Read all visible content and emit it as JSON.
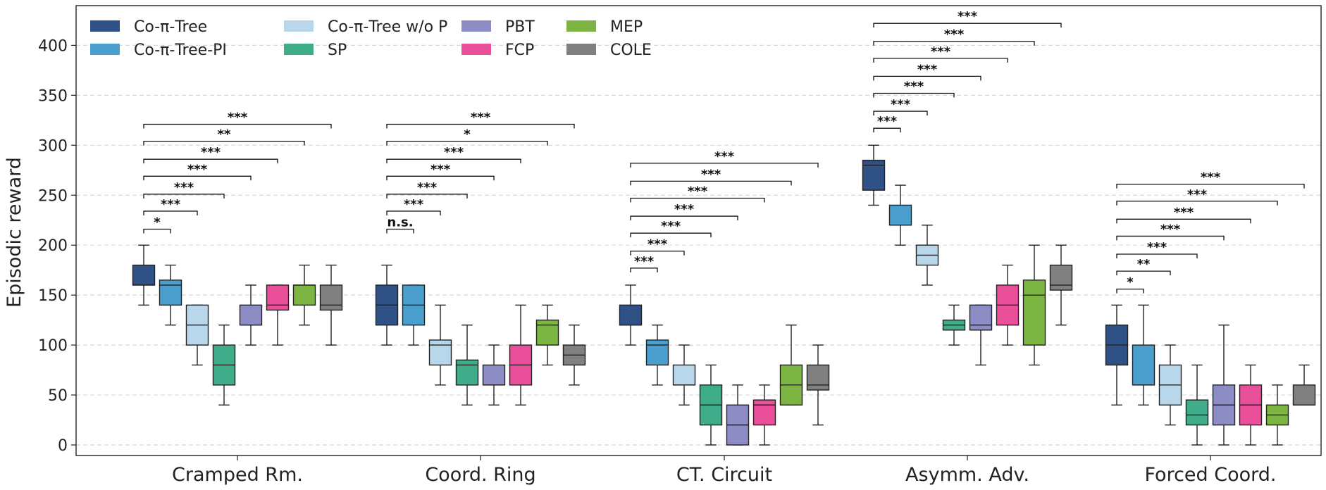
{
  "chart_data": {
    "type": "boxplot",
    "title": "",
    "xlabel": "",
    "ylabel": "Episodic reward",
    "ylim": [
      -10,
      440
    ],
    "yticks": [
      0,
      50,
      100,
      150,
      200,
      250,
      300,
      350,
      400
    ],
    "grid": "y-dashed",
    "legend_placement": "top-left",
    "categories": [
      "Cramped Rm.",
      "Coord. Ring",
      "CT. Circuit",
      "Asymm. Adv.",
      "Forced Coord."
    ],
    "series": [
      {
        "name": "Co-π-Tree",
        "color": "#2f5185",
        "boxes": [
          {
            "min": 140,
            "q1": 160,
            "median": 160,
            "q3": 180,
            "max": 200
          },
          {
            "min": 100,
            "q1": 120,
            "median": 140,
            "q3": 160,
            "max": 180
          },
          {
            "min": 100,
            "q1": 120,
            "median": 120,
            "q3": 140,
            "max": 160
          },
          {
            "min": 240,
            "q1": 255,
            "median": 280,
            "q3": 285,
            "max": 300
          },
          {
            "min": 40,
            "q1": 80,
            "median": 100,
            "q3": 120,
            "max": 140
          }
        ]
      },
      {
        "name": "Co-π-Tree-PI",
        "color": "#4b9fcf",
        "boxes": [
          {
            "min": 120,
            "q1": 140,
            "median": 160,
            "q3": 165,
            "max": 180
          },
          {
            "min": 100,
            "q1": 120,
            "median": 140,
            "q3": 160,
            "max": 160
          },
          {
            "min": 60,
            "q1": 80,
            "median": 100,
            "q3": 105,
            "max": 120
          },
          {
            "min": 200,
            "q1": 220,
            "median": 220,
            "q3": 240,
            "max": 260
          },
          {
            "min": 40,
            "q1": 60,
            "median": 60,
            "q3": 100,
            "max": 140
          }
        ]
      },
      {
        "name": "Co-π-Tree w/o P",
        "color": "#b9d7ea",
        "boxes": [
          {
            "min": 80,
            "q1": 100,
            "median": 120,
            "q3": 140,
            "max": 140
          },
          {
            "min": 60,
            "q1": 80,
            "median": 100,
            "q3": 105,
            "max": 140
          },
          {
            "min": 40,
            "q1": 60,
            "median": 60,
            "q3": 80,
            "max": 100
          },
          {
            "min": 160,
            "q1": 180,
            "median": 190,
            "q3": 200,
            "max": 220
          },
          {
            "min": 20,
            "q1": 40,
            "median": 60,
            "q3": 80,
            "max": 100
          }
        ]
      },
      {
        "name": "SP",
        "color": "#3fad8a",
        "boxes": [
          {
            "min": 40,
            "q1": 60,
            "median": 80,
            "q3": 100,
            "max": 120
          },
          {
            "min": 40,
            "q1": 60,
            "median": 80,
            "q3": 85,
            "max": 120
          },
          {
            "min": 0,
            "q1": 20,
            "median": 40,
            "q3": 60,
            "max": 80
          },
          {
            "min": 100,
            "q1": 115,
            "median": 120,
            "q3": 125,
            "max": 140
          },
          {
            "min": 0,
            "q1": 20,
            "median": 30,
            "q3": 45,
            "max": 80
          }
        ]
      },
      {
        "name": "PBT",
        "color": "#8e8cc4",
        "boxes": [
          {
            "min": 100,
            "q1": 120,
            "median": 120,
            "q3": 140,
            "max": 160
          },
          {
            "min": 40,
            "q1": 60,
            "median": 60,
            "q3": 80,
            "max": 100
          },
          {
            "min": 0,
            "q1": 0,
            "median": 20,
            "q3": 40,
            "max": 60
          },
          {
            "min": 80,
            "q1": 115,
            "median": 120,
            "q3": 140,
            "max": 140
          },
          {
            "min": 0,
            "q1": 20,
            "median": 40,
            "q3": 60,
            "max": 120
          }
        ]
      },
      {
        "name": "FCP",
        "color": "#ea4f9a",
        "boxes": [
          {
            "min": 100,
            "q1": 135,
            "median": 140,
            "q3": 160,
            "max": 160
          },
          {
            "min": 40,
            "q1": 60,
            "median": 80,
            "q3": 100,
            "max": 140
          },
          {
            "min": 0,
            "q1": 20,
            "median": 40,
            "q3": 45,
            "max": 60
          },
          {
            "min": 100,
            "q1": 120,
            "median": 140,
            "q3": 160,
            "max": 180
          },
          {
            "min": 0,
            "q1": 20,
            "median": 40,
            "q3": 60,
            "max": 80
          }
        ]
      },
      {
        "name": "MEP",
        "color": "#7db543",
        "boxes": [
          {
            "min": 120,
            "q1": 140,
            "median": 160,
            "q3": 160,
            "max": 180
          },
          {
            "min": 80,
            "q1": 100,
            "median": 120,
            "q3": 125,
            "max": 140
          },
          {
            "min": 40,
            "q1": 40,
            "median": 60,
            "q3": 80,
            "max": 120
          },
          {
            "min": 80,
            "q1": 100,
            "median": 150,
            "q3": 165,
            "max": 200
          },
          {
            "min": 0,
            "q1": 20,
            "median": 30,
            "q3": 40,
            "max": 60
          }
        ]
      },
      {
        "name": "COLE",
        "color": "#808080",
        "boxes": [
          {
            "min": 100,
            "q1": 135,
            "median": 140,
            "q3": 160,
            "max": 180
          },
          {
            "min": 60,
            "q1": 80,
            "median": 90,
            "q3": 100,
            "max": 120
          },
          {
            "min": 20,
            "q1": 55,
            "median": 60,
            "q3": 80,
            "max": 100
          },
          {
            "min": 120,
            "q1": 155,
            "median": 160,
            "q3": 180,
            "max": 200
          },
          {
            "min": 40,
            "q1": 40,
            "median": 40,
            "q3": 60,
            "max": 80
          }
        ]
      }
    ],
    "significance": [
      {
        "category": "Cramped Rm.",
        "brackets": [
          {
            "vs": "Co-π-Tree-PI",
            "label": "*",
            "y": 216
          },
          {
            "vs": "Co-π-Tree w/o P",
            "label": "***",
            "y": 234
          },
          {
            "vs": "SP",
            "label": "***",
            "y": 251
          },
          {
            "vs": "PBT",
            "label": "***",
            "y": 269
          },
          {
            "vs": "FCP",
            "label": "***",
            "y": 286
          },
          {
            "vs": "MEP",
            "label": "**",
            "y": 304
          },
          {
            "vs": "COLE",
            "label": "***",
            "y": 321
          }
        ]
      },
      {
        "category": "Coord. Ring",
        "brackets": [
          {
            "vs": "Co-π-Tree-PI",
            "label": "n.s.",
            "y": 216
          },
          {
            "vs": "Co-π-Tree w/o P",
            "label": "***",
            "y": 234
          },
          {
            "vs": "SP",
            "label": "***",
            "y": 251
          },
          {
            "vs": "PBT",
            "label": "***",
            "y": 269
          },
          {
            "vs": "FCP",
            "label": "***",
            "y": 286
          },
          {
            "vs": "MEP",
            "label": "*",
            "y": 304
          },
          {
            "vs": "COLE",
            "label": "***",
            "y": 321
          }
        ]
      },
      {
        "category": "CT. Circuit",
        "brackets": [
          {
            "vs": "Co-π-Tree-PI",
            "label": "***",
            "y": 177
          },
          {
            "vs": "Co-π-Tree w/o P",
            "label": "***",
            "y": 194
          },
          {
            "vs": "SP",
            "label": "***",
            "y": 212
          },
          {
            "vs": "PBT",
            "label": "***",
            "y": 229
          },
          {
            "vs": "FCP",
            "label": "***",
            "y": 247
          },
          {
            "vs": "MEP",
            "label": "***",
            "y": 264
          },
          {
            "vs": "COLE",
            "label": "***",
            "y": 282
          }
        ]
      },
      {
        "category": "Asymm. Adv.",
        "brackets": [
          {
            "vs": "Co-π-Tree-PI",
            "label": "***",
            "y": 317
          },
          {
            "vs": "Co-π-Tree w/o P",
            "label": "***",
            "y": 334
          },
          {
            "vs": "SP",
            "label": "***",
            "y": 352
          },
          {
            "vs": "PBT",
            "label": "***",
            "y": 369
          },
          {
            "vs": "FCP",
            "label": "***",
            "y": 387
          },
          {
            "vs": "MEP",
            "label": "***",
            "y": 404
          },
          {
            "vs": "COLE",
            "label": "***",
            "y": 422
          }
        ]
      },
      {
        "category": "Forced Coord.",
        "brackets": [
          {
            "vs": "Co-π-Tree-PI",
            "label": "*",
            "y": 156
          },
          {
            "vs": "Co-π-Tree w/o P",
            "label": "**",
            "y": 174
          },
          {
            "vs": "SP",
            "label": "***",
            "y": 191
          },
          {
            "vs": "PBT",
            "label": "***",
            "y": 209
          },
          {
            "vs": "FCP",
            "label": "***",
            "y": 226
          },
          {
            "vs": "MEP",
            "label": "***",
            "y": 244
          },
          {
            "vs": "COLE",
            "label": "***",
            "y": 261
          }
        ]
      }
    ]
  }
}
